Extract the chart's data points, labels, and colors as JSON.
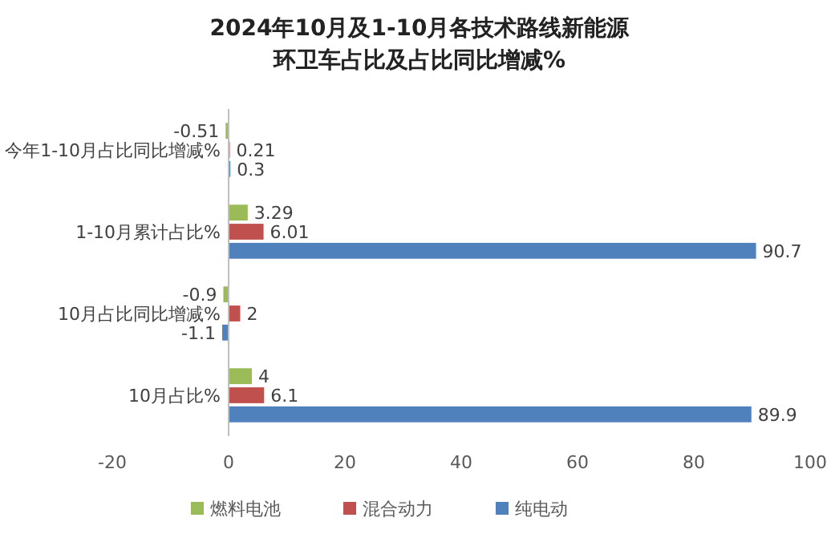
{
  "chart_data": {
    "type": "bar",
    "orientation": "horizontal",
    "title": "2024年10月及1-10月各技术路线新能源环卫车占比及占比同比增减%",
    "categories": [
      "今年1-10月占比同比增减%",
      "1-10月累计占比%",
      "10月占比同比增减%",
      "10月占比%"
    ],
    "series": [
      {
        "name": "燃料电池",
        "color": "#9bbb59",
        "values": [
          -0.51,
          3.29,
          -0.9,
          4
        ]
      },
      {
        "name": "混合动力",
        "color": "#c0504d",
        "values": [
          0.21,
          6.01,
          2,
          6.1
        ]
      },
      {
        "name": "纯电动",
        "color": "#4f81bd",
        "values": [
          0.3,
          90.7,
          -1.1,
          89.9
        ]
      }
    ],
    "xlim": [
      -20,
      100
    ],
    "xticks": [
      -20,
      0,
      20,
      40,
      60,
      80,
      100
    ],
    "data_labels": true,
    "legend": "bottom",
    "grid": false
  }
}
